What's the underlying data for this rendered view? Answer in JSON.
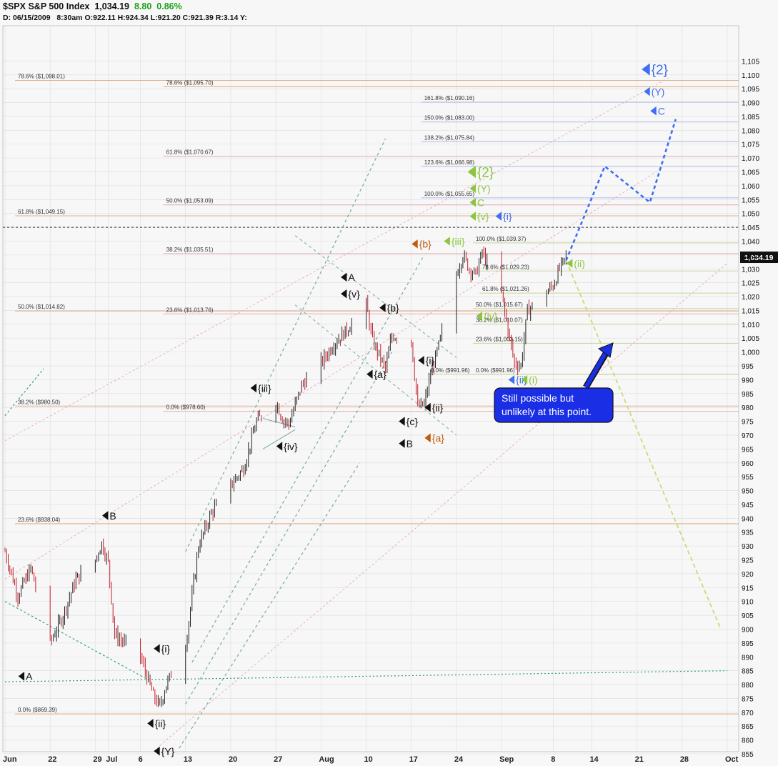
{
  "header": {
    "symbol": "$SPX",
    "name": "S&P 500 Index",
    "last": "1,034.19",
    "change": "8.80",
    "change_pct": "0.86%",
    "date": "D: 06/15/2009",
    "time": "8:30am",
    "open": "O:922.11",
    "high": "H:924.34",
    "low": "L:921.20",
    "close": "C:921.39",
    "range": "R:3.14",
    "y": "Y:"
  },
  "chart_data": {
    "type": "candlestick",
    "ylim": [
      855,
      1110
    ],
    "y_ticks": [
      855,
      860,
      865,
      870,
      875,
      880,
      885,
      890,
      895,
      900,
      905,
      910,
      915,
      920,
      925,
      930,
      935,
      940,
      945,
      950,
      955,
      960,
      965,
      970,
      975,
      980,
      985,
      990,
      995,
      1000,
      1005,
      1010,
      1015,
      1020,
      1025,
      1030,
      1035,
      1040,
      1045,
      1050,
      1055,
      1060,
      1065,
      1070,
      1075,
      1080,
      1085,
      1090,
      1095,
      1100,
      1105
    ],
    "y_tick_labels": [
      "855",
      "860",
      "865",
      "870",
      "875",
      "880",
      "885",
      "890",
      "895",
      "900",
      "905",
      "910",
      "915",
      "920",
      "925",
      "930",
      "935",
      "940",
      "945",
      "950",
      "955",
      "960",
      "965",
      "970",
      "975",
      "980",
      "985",
      "990",
      "995",
      "1,000",
      "1,005",
      "1,010",
      "1,015",
      "1,020",
      "1,025",
      "1,030",
      "1,035",
      "1,040",
      "1,045",
      "1,050",
      "1,055",
      "1,060",
      "1,065",
      "1,070",
      "1,075",
      "1,080",
      "1,085",
      "1,090",
      "1,095",
      "1,100",
      "1,105"
    ],
    "x_labels": [
      {
        "date": "2009-06-15",
        "label": "Jun"
      },
      {
        "date": "2009-06-22",
        "label": "22"
      },
      {
        "date": "2009-06-29",
        "label": "29"
      },
      {
        "date": "2009-07-01",
        "label": "Jul"
      },
      {
        "date": "2009-07-06",
        "label": "6"
      },
      {
        "date": "2009-07-13",
        "label": "13"
      },
      {
        "date": "2009-07-20",
        "label": "20"
      },
      {
        "date": "2009-07-27",
        "label": "27"
      },
      {
        "date": "2009-08-03",
        "label": "Aug"
      },
      {
        "date": "2009-08-10",
        "label": "10"
      },
      {
        "date": "2009-08-17",
        "label": "17"
      },
      {
        "date": "2009-08-24",
        "label": "24"
      },
      {
        "date": "2009-08-31",
        "label": "Sep"
      },
      {
        "date": "2009-09-08",
        "label": "8"
      },
      {
        "date": "2009-09-14",
        "label": "14"
      },
      {
        "date": "2009-09-21",
        "label": "21"
      },
      {
        "date": "2009-09-28",
        "label": "28"
      },
      {
        "date": "2009-10-05",
        "label": "Oct"
      }
    ],
    "last_price_label": "1,034.19",
    "last_price": 1034.19,
    "price_path": [
      [
        "2009-06-15",
        928
      ],
      [
        "2009-06-17",
        912
      ],
      [
        "2009-06-19",
        922
      ],
      [
        "2009-06-22",
        895
      ],
      [
        "2009-06-24",
        905
      ],
      [
        "2009-06-26",
        918
      ],
      [
        "2009-06-29",
        925
      ],
      [
        "2009-06-30",
        931
      ],
      [
        "2009-07-01",
        924
      ],
      [
        "2009-07-02",
        898
      ],
      [
        "2009-07-06",
        890
      ],
      [
        "2009-07-08",
        876
      ],
      [
        "2009-07-09",
        872
      ],
      [
        "2009-07-10",
        880
      ],
      [
        "2009-07-13",
        894
      ],
      [
        "2009-07-15",
        930
      ],
      [
        "2009-07-17",
        942
      ],
      [
        "2009-07-20",
        952
      ],
      [
        "2009-07-22",
        958
      ],
      [
        "2009-07-24",
        975
      ],
      [
        "2009-07-27",
        982
      ],
      [
        "2009-07-28",
        976
      ],
      [
        "2009-07-29",
        974
      ],
      [
        "2009-07-31",
        988
      ],
      [
        "2009-08-03",
        996
      ],
      [
        "2009-08-05",
        1003
      ],
      [
        "2009-08-07",
        1008
      ],
      [
        "2009-08-10",
        1017
      ],
      [
        "2009-08-11",
        1004
      ],
      [
        "2009-08-13",
        994
      ],
      [
        "2009-08-14",
        1006
      ],
      [
        "2009-08-17",
        1004
      ],
      [
        "2009-08-18",
        980
      ],
      [
        "2009-08-19",
        981
      ],
      [
        "2009-08-20",
        992
      ],
      [
        "2009-08-21",
        1000
      ],
      [
        "2009-08-24",
        1028
      ],
      [
        "2009-08-25",
        1035
      ],
      [
        "2009-08-26",
        1030
      ],
      [
        "2009-08-27",
        1028
      ],
      [
        "2009-08-28",
        1036
      ],
      [
        "2009-08-31",
        1021
      ],
      [
        "2009-09-01",
        1008
      ],
      [
        "2009-09-02",
        996
      ],
      [
        "2009-09-03",
        995
      ],
      [
        "2009-09-04",
        1015
      ],
      [
        "2009-09-08",
        1024
      ],
      [
        "2009-09-09",
        1030
      ],
      [
        "2009-09-10",
        1034.19
      ]
    ],
    "fib_labels": [
      {
        "text": "78.6%   ($1,098.01)",
        "date": "2009-06-17",
        "price": 1098.01,
        "color": "#e0b088"
      },
      {
        "text": "78.6%   ($1,095.70)",
        "date": "2009-07-10",
        "price": 1095.7,
        "color": "#e0b088"
      },
      {
        "text": "61.8%   ($1,070.67)",
        "date": "2009-07-10",
        "price": 1070.67,
        "color": "#e3b0b8"
      },
      {
        "text": "50.0%   ($1,053.09)",
        "date": "2009-07-10",
        "price": 1053.09,
        "color": "#e3b0b8"
      },
      {
        "text": "61.8%   ($1,049.15)",
        "date": "2009-06-17",
        "price": 1049.15,
        "color": "#e0b088"
      },
      {
        "text": "38.2%   ($1,035.51)",
        "date": "2009-07-10",
        "price": 1035.51,
        "color": "#e3b0b8"
      },
      {
        "text": "50.0%   ($1,014.82)",
        "date": "2009-06-17",
        "price": 1014.82,
        "color": "#e0b088"
      },
      {
        "text": "23.6%   ($1,013.76)",
        "date": "2009-07-10",
        "price": 1013.76,
        "color": "#e3b0b8"
      },
      {
        "text": "38.2%   ($980.50)",
        "date": "2009-06-17",
        "price": 980.5,
        "color": "#e0b088"
      },
      {
        "text": "0.0%   ($978.60)",
        "date": "2009-07-10",
        "price": 978.6,
        "color": "#e3b0b8"
      },
      {
        "text": "23.6%   ($938.04)",
        "date": "2009-06-17",
        "price": 938.04,
        "color": "#e0b088"
      },
      {
        "text": "0.0%   ($869.39)",
        "date": "2009-06-17",
        "price": 869.39,
        "color": "#e0b088"
      },
      {
        "text": "161.8%   ($1,090.16)",
        "date": "2009-08-19",
        "price": 1090.16,
        "color": "#b8c0e8"
      },
      {
        "text": "150.0%   ($1,083.00)",
        "date": "2009-08-19",
        "price": 1083.0,
        "color": "#b8c0e8"
      },
      {
        "text": "138.2%   ($1,075.84)",
        "date": "2009-08-19",
        "price": 1075.84,
        "color": "#b8c0e8"
      },
      {
        "text": "123.6%   ($1,066.98)",
        "date": "2009-08-19",
        "price": 1066.98,
        "color": "#b8c0e8"
      },
      {
        "text": "100.0%   ($1,055.65)",
        "date": "2009-08-19",
        "price": 1055.65,
        "color": "#b8c0e8"
      },
      {
        "text": "100.0%   ($1,039.37)",
        "date": "2009-08-27",
        "price": 1039.37,
        "color": "#c8d8a0"
      },
      {
        "text": "78.6%   ($1,029.23)",
        "date": "2009-08-28",
        "price": 1029.23,
        "color": "#c8d8a0"
      },
      {
        "text": "61.8%   ($1,021.26)",
        "date": "2009-08-28",
        "price": 1021.26,
        "color": "#c8d8a0"
      },
      {
        "text": "50.0%   ($1,015.67)",
        "date": "2009-08-27",
        "price": 1015.67,
        "color": "#c8d8a0"
      },
      {
        "text": "38.2%   ($1,010.07)",
        "date": "2009-08-27",
        "price": 1010.07,
        "color": "#c8d8a0"
      },
      {
        "text": "23.6%   ($1,003.15)",
        "date": "2009-08-27",
        "price": 1003.15,
        "color": "#c8d8a0"
      },
      {
        "text": "0.0%   ($991.96)",
        "date": "2009-08-20",
        "price": 991.96,
        "color": "#c8d8a0"
      },
      {
        "text": "0.0%   ($991.96)",
        "date": "2009-08-27",
        "price": 991.96,
        "color": "#c8d8a0"
      }
    ],
    "wave_labels": [
      {
        "text": "A",
        "date": "2009-06-18",
        "price": 883,
        "color": "#111"
      },
      {
        "text": "B",
        "date": "2009-07-01",
        "price": 941,
        "color": "#111"
      },
      {
        "text": "{i}",
        "date": "2009-07-09",
        "price": 893,
        "color": "#111"
      },
      {
        "text": "{ii}",
        "date": "2009-07-08",
        "price": 866,
        "color": "#111"
      },
      {
        "text": "{Y}",
        "date": "2009-07-09",
        "price": 856,
        "color": "#111"
      },
      {
        "text": "{iii}",
        "date": "2009-07-24",
        "price": 987,
        "color": "#111"
      },
      {
        "text": "{iv}",
        "date": "2009-07-28",
        "price": 966,
        "color": "#111"
      },
      {
        "text": "A",
        "date": "2009-08-07",
        "price": 1027,
        "color": "#111"
      },
      {
        "text": "{v}",
        "date": "2009-08-07",
        "price": 1021,
        "color": "#111"
      },
      {
        "text": "{b}",
        "date": "2009-08-13",
        "price": 1016,
        "color": "#111"
      },
      {
        "text": "{a}",
        "date": "2009-08-11",
        "price": 992,
        "color": "#111"
      },
      {
        "text": "{i}",
        "date": "2009-08-19",
        "price": 997,
        "color": "#111"
      },
      {
        "text": "{ii}",
        "date": "2009-08-20",
        "price": 980,
        "color": "#111"
      },
      {
        "text": "{c}",
        "date": "2009-08-16",
        "price": 975,
        "color": "#111"
      },
      {
        "text": "B",
        "date": "2009-08-16",
        "price": 967,
        "color": "#111"
      },
      {
        "text": "{a}",
        "date": "2009-08-20",
        "price": 969,
        "color": "#c05a10"
      },
      {
        "text": "{b}",
        "date": "2009-08-18",
        "price": 1039,
        "color": "#c05a10"
      },
      {
        "text": "{iii}",
        "date": "2009-08-23",
        "price": 1040,
        "color": "#8cc63f"
      },
      {
        "text": "{2}",
        "date": "2009-08-27",
        "price": 1065,
        "color": "#8cc63f"
      },
      {
        "text": "(Y)",
        "date": "2009-08-27",
        "price": 1059,
        "color": "#8cc63f"
      },
      {
        "text": "C",
        "date": "2009-08-27",
        "price": 1054,
        "color": "#8cc63f"
      },
      {
        "text": "{v}",
        "date": "2009-08-27",
        "price": 1049,
        "color": "#8cc63f"
      },
      {
        "text": "{i}",
        "date": "2009-08-31",
        "price": 1049,
        "color": "#3f6ef0"
      },
      {
        "text": "{iv}",
        "date": "2009-08-28",
        "price": 1013,
        "color": "#8cc63f"
      },
      {
        "text": "{ii}",
        "date": "2009-09-02",
        "price": 990,
        "color": "#3f6ef0"
      },
      {
        "text": "(i)",
        "date": "2009-09-04",
        "price": 990,
        "color": "#8cc63f"
      },
      {
        "text": "(ii)",
        "date": "2009-09-11",
        "price": 1032,
        "color": "#8cc63f"
      },
      {
        "text": "{2}",
        "date": "2009-09-23",
        "price": 1102,
        "color": "#3f6ef0"
      },
      {
        "text": "(Y)",
        "date": "2009-09-23",
        "price": 1094,
        "color": "#3f6ef0"
      },
      {
        "text": "C",
        "date": "2009-09-24",
        "price": 1087,
        "color": "#3f6ef0"
      }
    ],
    "annotation": "Still possible but unlikely at this point."
  },
  "colors": {
    "up": "#222222",
    "down": "#c0202a",
    "grid": "#dddddd",
    "blue_projection": "#3f6ef0",
    "green_projection": "#c8dc7a",
    "teal_trend": "#2a9a8a",
    "callout_bg": "#1a2ee6"
  }
}
